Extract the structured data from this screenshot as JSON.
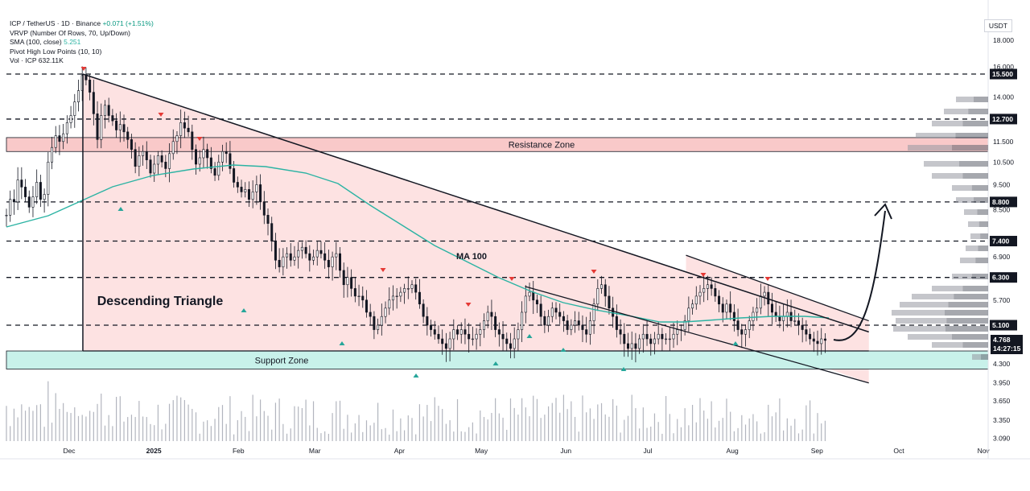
{
  "header": {
    "symbol_line": "ICP / TetherUS · 1D · Binance",
    "change": "+0.071 (+1.51%)",
    "indicators": [
      {
        "label": "VRVP (Number Of Rows, 70, Up/Down)",
        "value": ""
      },
      {
        "label": "SMA (100, close)",
        "value": "5.251"
      },
      {
        "label": "Pivot High Low Points (10, 10)",
        "value": ""
      },
      {
        "label": "Vol · ICP",
        "value": "632.11K"
      }
    ]
  },
  "unit": "USDT",
  "price_tags": {
    "last_price": "4.768",
    "countdown": "14:27:15"
  },
  "colors": {
    "triangle_fill": "#fde2e2",
    "resistance_fill": "#f9c9c9",
    "support_fill": "#c8f1ea",
    "ma_line": "#2bb3a3",
    "pivot_high": "#e53935",
    "pivot_low": "#26a69a",
    "candle": "#131722"
  },
  "annotations": {
    "resistance": "Resistance Zone",
    "support": "Support Zone",
    "pattern": "Descending Triangle",
    "ma": "MA 100"
  },
  "chart_data": {
    "type": "candlestick",
    "title": "",
    "y_axis": {
      "scale": "log",
      "range": [
        3.0,
        19.5
      ],
      "ticks": [
        18.0,
        16.0,
        14.0,
        12.7,
        11.5,
        10.5,
        9.5,
        8.5,
        7.4,
        6.9,
        6.3,
        5.7,
        5.1,
        4.3,
        3.95,
        3.65,
        3.35,
        3.09
      ],
      "tick_labels": [
        "18.000",
        "16.000",
        "14.000",
        "12.700",
        "11.500",
        "10.500",
        "9.500",
        "8.500",
        "7.400",
        "6.900",
        "6.300",
        "5.700",
        "5.100",
        "4.300",
        "3.950",
        "3.650",
        "3.350",
        "3.090"
      ]
    },
    "x_axis": {
      "labels": [
        "Dec",
        "2025",
        "Feb",
        "Mar",
        "Apr",
        "May",
        "Jun",
        "Jul",
        "Aug",
        "Sep",
        "Oct",
        "Nov"
      ],
      "label_dates": [
        "2024-12-01",
        "2025-01-01",
        "2025-02-01",
        "2025-03-01",
        "2025-04-01",
        "2025-05-01",
        "2025-06-01",
        "2025-07-01",
        "2025-08-01",
        "2025-09-01",
        "2025-10-01",
        "2025-11-01"
      ]
    },
    "horizontal_levels": [
      {
        "value": 15.5,
        "label": "15.500"
      },
      {
        "value": 12.7,
        "label": "12.700"
      },
      {
        "value": 8.8,
        "label": "8.800"
      },
      {
        "value": 7.4,
        "label": "7.400"
      },
      {
        "value": 6.3,
        "label": "6.300"
      },
      {
        "value": 5.1,
        "label": "5.100"
      }
    ],
    "resistance_zone": [
      11.0,
      11.7
    ],
    "support_zone": [
      4.2,
      4.55
    ],
    "descending_triangle": {
      "top_start": {
        "date": "2024-12-06",
        "value": 15.5
      },
      "top_end": {
        "date": "2025-09-20",
        "value": 4.95
      },
      "base": 4.55
    },
    "falling_channel": {
      "upper_start": {
        "date": "2025-07-15",
        "value": 6.95
      },
      "upper_end": {
        "date": "2025-09-20",
        "value": 5.2
      },
      "lower_start": {
        "date": "2025-07-15",
        "value": 5.25
      },
      "lower_end": {
        "date": "2025-09-20",
        "value": 3.95
      }
    },
    "projection_target": 8.8,
    "price_series": {
      "start": "2024-11-08",
      "end": "2025-09-04",
      "close": [
        8.3,
        8.9,
        8.8,
        9.7,
        9.4,
        9.0,
        8.6,
        9.0,
        9.6,
        8.9,
        9.1,
        10.5,
        11.2,
        11.8,
        11.5,
        11.9,
        12.5,
        12.9,
        13.7,
        14.4,
        15.4,
        15.1,
        14.3,
        13.0,
        11.6,
        12.9,
        13.5,
        12.9,
        12.6,
        12.1,
        12.4,
        12.0,
        11.6,
        11.1,
        10.3,
        10.8,
        11.0,
        10.6,
        10.0,
        10.4,
        10.8,
        10.5,
        10.2,
        10.9,
        11.5,
        11.8,
        12.5,
        12.2,
        12.0,
        11.1,
        10.4,
        10.7,
        11.1,
        10.7,
        10.2,
        9.9,
        10.5,
        11.0,
        10.9,
        10.2,
        9.6,
        9.4,
        9.2,
        9.3,
        8.9,
        9.2,
        9.5,
        8.8,
        8.3,
        8.0,
        7.4,
        6.8,
        6.6,
        6.9,
        7.0,
        6.8,
        6.9,
        7.1,
        7.2,
        7.0,
        6.8,
        6.9,
        7.1,
        7.0,
        6.8,
        6.6,
        6.9,
        7.0,
        6.5,
        6.1,
        6.3,
        6.0,
        5.8,
        5.8,
        5.7,
        5.4,
        5.3,
        5.0,
        5.1,
        5.3,
        5.5,
        5.7,
        5.8,
        5.8,
        5.9,
        6.0,
        6.0,
        6.1,
        5.9,
        5.6,
        5.3,
        5.1,
        5.0,
        4.9,
        4.8,
        4.7,
        4.6,
        4.8,
        5.0,
        4.9,
        5.0,
        4.9,
        4.8,
        4.8,
        4.9,
        5.0,
        5.2,
        5.4,
        5.3,
        5.0,
        4.9,
        4.8,
        4.7,
        4.6,
        4.8,
        5.0,
        5.4,
        5.8,
        5.9,
        5.7,
        5.6,
        5.3,
        5.1,
        5.3,
        5.5,
        5.4,
        5.3,
        5.2,
        5.0,
        5.1,
        5.2,
        5.1,
        5.0,
        4.9,
        5.2,
        5.6,
        6.0,
        6.1,
        5.8,
        5.5,
        5.3,
        5.0,
        4.9,
        4.7,
        4.6,
        4.7,
        4.6,
        4.8,
        4.9,
        4.8,
        4.7,
        4.8,
        4.9,
        4.8,
        4.8,
        4.8,
        4.9,
        5.0,
        5.0,
        5.2,
        5.5,
        5.6,
        5.8,
        5.9,
        6.0,
        6.1,
        6.0,
        5.8,
        5.6,
        5.4,
        5.6,
        5.4,
        5.2,
        5.0,
        4.9,
        5.0,
        5.2,
        5.4,
        5.5,
        5.8,
        5.9,
        5.6,
        5.4,
        5.3,
        5.2,
        5.3,
        5.4,
        5.2,
        5.2,
        5.1,
        5.0,
        4.9,
        4.8,
        4.75,
        4.7,
        4.8,
        4.768
      ]
    },
    "sma_100_recent": [
      5.4,
      5.3,
      5.3,
      5.251
    ],
    "volume_last": "632.11K"
  }
}
